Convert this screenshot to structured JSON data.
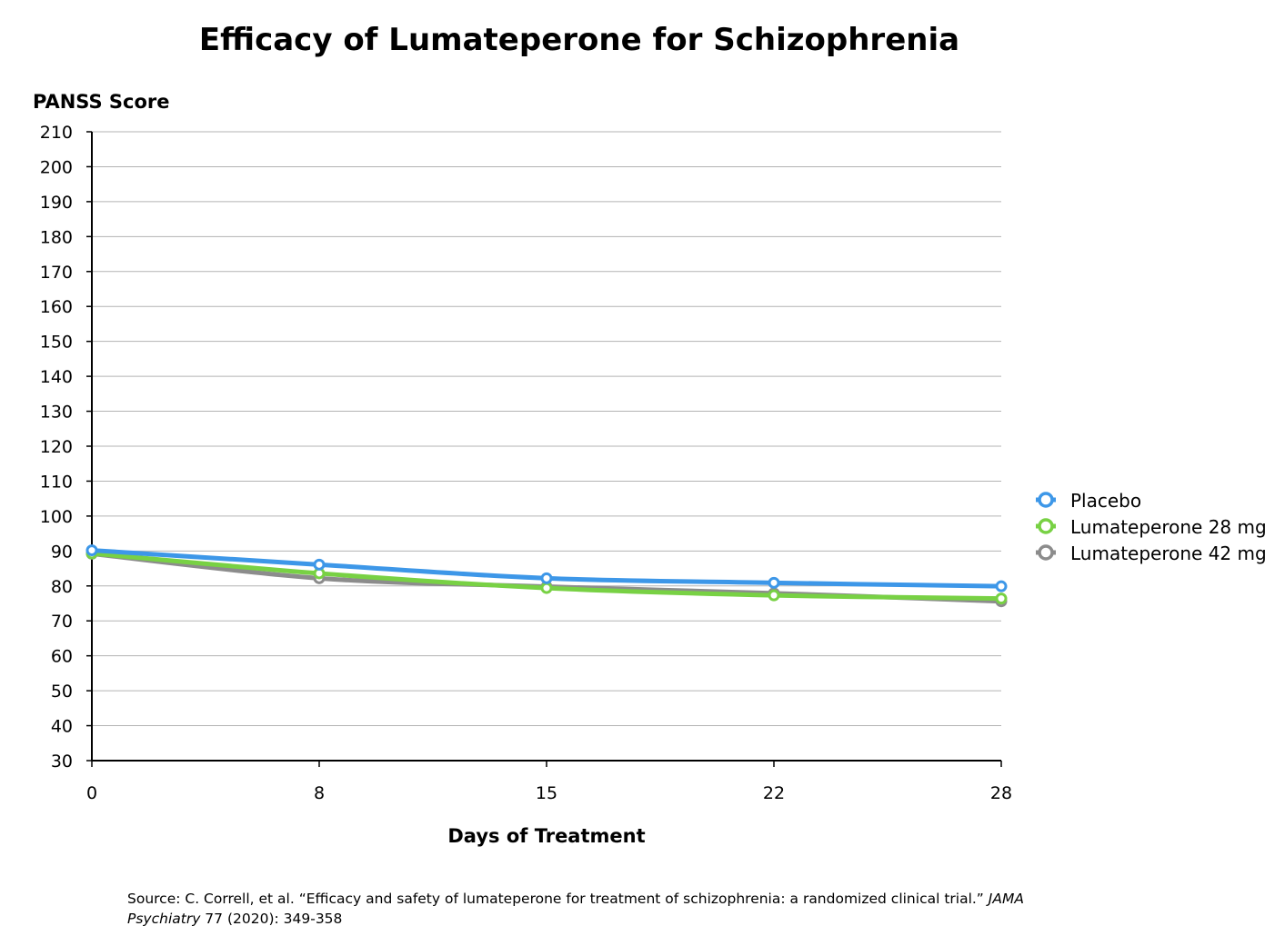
{
  "chart_data": {
    "type": "line",
    "title": "Efficacy of Lumateperone for Schizophrenia",
    "ylabel": "PANSS Score",
    "xlabel": "Days of Treatment",
    "x": [
      0,
      8,
      15,
      22,
      28
    ],
    "ylim": [
      30,
      210
    ],
    "yticks": [
      30,
      40,
      50,
      60,
      70,
      80,
      90,
      100,
      110,
      120,
      130,
      140,
      150,
      160,
      170,
      180,
      190,
      200,
      210
    ],
    "grid": true,
    "legend_position": "right",
    "series": [
      {
        "name": "Placebo",
        "color": "#3d97e8",
        "values": [
          90.2,
          86.1,
          82.2,
          80.9,
          79.9
        ]
      },
      {
        "name": "Lumateperone 28 mg",
        "color": "#78d144",
        "values": [
          89.3,
          83.6,
          79.4,
          77.3,
          76.4
        ]
      },
      {
        "name": "Lumateperone 42 mg",
        "color": "#8c8c8c",
        "values": [
          89.2,
          82.2,
          79.8,
          77.9,
          75.6
        ]
      }
    ]
  },
  "source": {
    "prefix": "Source: C. Correll, et al. “Efficacy and safety of lumateperone for treatment of schizophrenia:  a randomized clinical trial.” ",
    "journal": "JAMA Psychiatry",
    "suffix": " 77 (2020): 349-358"
  }
}
